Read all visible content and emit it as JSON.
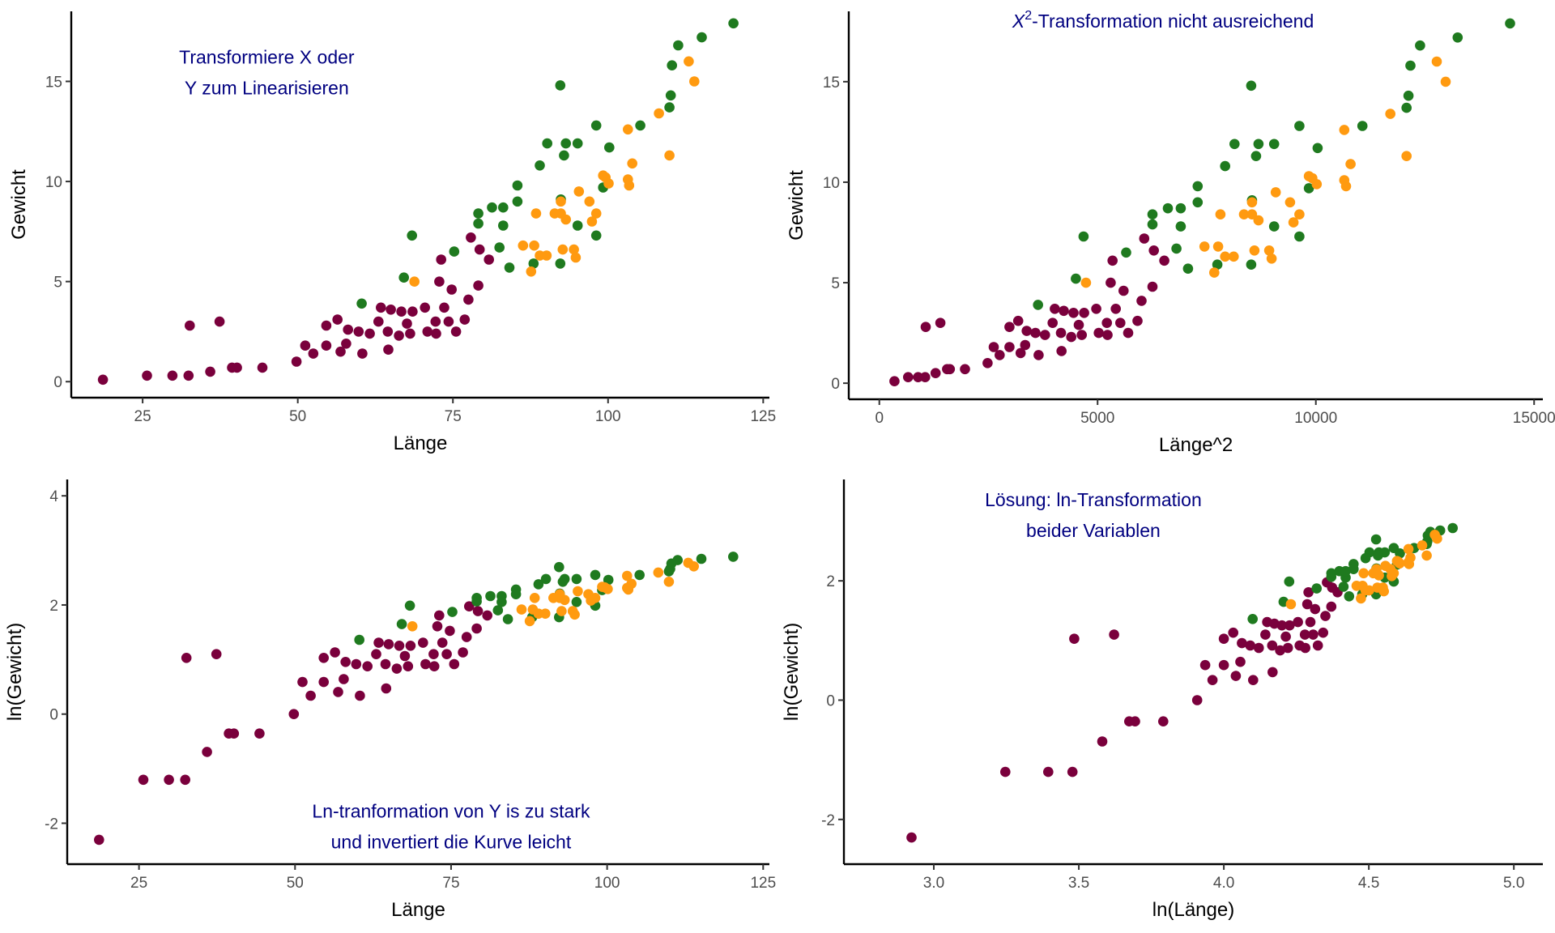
{
  "colors": {
    "group_a": "#7a003c",
    "group_b": "#1f7a1f",
    "group_c": "#ff9a10",
    "annotation": "#000080",
    "tick_label": "#4d4d4d",
    "axis": "#000000"
  },
  "chart_data": [
    {
      "id": "p1",
      "type": "scatter",
      "title": "",
      "xlabel": "Länge",
      "ylabel": "Gewicht",
      "xlim": [
        13.5,
        126
      ],
      "ylim": [
        -0.8,
        18.5
      ],
      "xticks": [
        25,
        50,
        75,
        100,
        125
      ],
      "xtick_labels": [
        "25",
        "50",
        "75",
        "100",
        "125"
      ],
      "yticks": [
        0,
        5,
        10,
        15
      ],
      "ytick_labels": [
        "0",
        "5",
        "10",
        "15"
      ],
      "x_transform": "identity",
      "y_transform": "identity",
      "grid": false,
      "legend": "none",
      "annotation": {
        "lines": [
          "Transformiere X oder",
          "Y zum Linearisieren"
        ],
        "anchor_x": 45,
        "anchor_y": 15.9
      }
    },
    {
      "id": "p2",
      "type": "scatter",
      "xlabel": "Länge^2",
      "ylabel": "Gewicht",
      "xlim": [
        -700,
        15200
      ],
      "ylim": [
        -0.8,
        18.5
      ],
      "xticks": [
        0,
        5000,
        10000,
        15000
      ],
      "xtick_labels": [
        "0",
        "5000",
        "10000",
        "15000"
      ],
      "yticks": [
        0,
        5,
        10,
        15
      ],
      "ytick_labels": [
        "0",
        "5",
        "10",
        "15"
      ],
      "x_transform": "square",
      "y_transform": "identity",
      "grid": false,
      "legend": "none",
      "annotation": {
        "prefix_italic": "X",
        "superscript": "2",
        "lines": [
          "-Transformation nicht ausreichend"
        ],
        "anchor_x": 6500,
        "anchor_y": 17.7
      }
    },
    {
      "id": "p3",
      "type": "scatter",
      "xlabel": "Länge",
      "ylabel": "ln(Gewicht)",
      "xlim": [
        13.5,
        126
      ],
      "ylim": [
        -2.75,
        4.3
      ],
      "xticks": [
        25,
        50,
        75,
        100,
        125
      ],
      "xtick_labels": [
        "25",
        "50",
        "75",
        "100",
        "125"
      ],
      "yticks": [
        -2,
        0,
        2,
        4
      ],
      "ytick_labels": [
        "-2",
        "0",
        "2",
        "4"
      ],
      "x_transform": "identity",
      "y_transform": "log",
      "grid": false,
      "legend": "none",
      "annotation": {
        "lines": [
          "Ln-tranformation von Y is zu stark",
          "und invertiert die Kurve leicht"
        ],
        "anchor_x": 75,
        "anchor_y": -1.9
      }
    },
    {
      "id": "p4",
      "type": "scatter",
      "xlabel": "ln(Länge)",
      "ylabel": "ln(Gewicht)",
      "xlim": [
        2.69,
        5.1
      ],
      "ylim": [
        -2.75,
        3.7
      ],
      "xticks": [
        3.0,
        3.5,
        4.0,
        4.5,
        5.0
      ],
      "xtick_labels": [
        "3.0",
        "3.5",
        "4.0",
        "4.5",
        "5.0"
      ],
      "yticks": [
        -2,
        0,
        2
      ],
      "ytick_labels": [
        "-2",
        "0",
        "2"
      ],
      "x_transform": "log",
      "y_transform": "log",
      "grid": false,
      "legend": "none",
      "annotation": {
        "lines": [
          "Lösung: ln-Transformation",
          "beider Variablen"
        ],
        "anchor_x": 3.55,
        "anchor_y": 3.25
      }
    }
  ],
  "points": {
    "fields": [
      "laenge",
      "gewicht",
      "group"
    ],
    "rows": [
      [
        18.6,
        0.1,
        "a"
      ],
      [
        25.7,
        0.3,
        "a"
      ],
      [
        29.8,
        0.3,
        "a"
      ],
      [
        32.4,
        0.3,
        "a"
      ],
      [
        35.9,
        0.5,
        "a"
      ],
      [
        39.4,
        0.7,
        "a"
      ],
      [
        40.2,
        0.7,
        "a"
      ],
      [
        44.3,
        0.7,
        "a"
      ],
      [
        49.8,
        1.0,
        "a"
      ],
      [
        32.6,
        2.8,
        "a"
      ],
      [
        37.4,
        3.0,
        "a"
      ],
      [
        51.2,
        1.8,
        "a"
      ],
      [
        52.5,
        1.4,
        "a"
      ],
      [
        54.6,
        2.8,
        "a"
      ],
      [
        54.6,
        1.8,
        "a"
      ],
      [
        56.4,
        3.1,
        "a"
      ],
      [
        56.9,
        1.5,
        "a"
      ],
      [
        57.8,
        1.9,
        "a"
      ],
      [
        58.1,
        2.6,
        "a"
      ],
      [
        59.8,
        2.5,
        "a"
      ],
      [
        60.4,
        1.4,
        "a"
      ],
      [
        61.6,
        2.4,
        "a"
      ],
      [
        63.0,
        3.0,
        "a"
      ],
      [
        63.4,
        3.7,
        "a"
      ],
      [
        64.5,
        2.5,
        "a"
      ],
      [
        64.6,
        1.6,
        "a"
      ],
      [
        65.0,
        3.6,
        "a"
      ],
      [
        66.3,
        2.3,
        "a"
      ],
      [
        66.7,
        3.5,
        "a"
      ],
      [
        67.6,
        2.9,
        "a"
      ],
      [
        68.1,
        2.4,
        "a"
      ],
      [
        68.5,
        3.5,
        "a"
      ],
      [
        70.5,
        3.7,
        "a"
      ],
      [
        70.9,
        2.5,
        "a"
      ],
      [
        72.2,
        3.0,
        "a"
      ],
      [
        72.3,
        2.4,
        "a"
      ],
      [
        72.8,
        5.0,
        "a"
      ],
      [
        73.1,
        6.1,
        "a"
      ],
      [
        73.6,
        3.7,
        "a"
      ],
      [
        74.3,
        3.0,
        "a"
      ],
      [
        74.8,
        4.6,
        "a"
      ],
      [
        75.5,
        2.5,
        "a"
      ],
      [
        76.9,
        3.1,
        "a"
      ],
      [
        77.5,
        4.1,
        "a"
      ],
      [
        77.9,
        7.2,
        "a"
      ],
      [
        79.1,
        4.8,
        "a"
      ],
      [
        79.3,
        6.6,
        "a"
      ],
      [
        80.8,
        6.1,
        "a"
      ],
      [
        60.3,
        3.9,
        "b"
      ],
      [
        67.1,
        5.2,
        "b"
      ],
      [
        68.4,
        7.3,
        "b"
      ],
      [
        75.2,
        6.5,
        "b"
      ],
      [
        82.5,
        6.7,
        "b"
      ],
      [
        84.1,
        5.7,
        "b"
      ],
      [
        79.1,
        7.9,
        "b"
      ],
      [
        83.1,
        7.8,
        "b"
      ],
      [
        98.1,
        12.8,
        "b"
      ],
      [
        105.2,
        12.8,
        "b"
      ],
      [
        90.2,
        11.9,
        "b"
      ],
      [
        93.2,
        11.9,
        "b"
      ],
      [
        95.1,
        11.9,
        "b"
      ],
      [
        100.2,
        11.7,
        "b"
      ],
      [
        92.9,
        11.3,
        "b"
      ],
      [
        89.0,
        10.8,
        "b"
      ],
      [
        85.4,
        9.8,
        "b"
      ],
      [
        85.4,
        9.0,
        "b"
      ],
      [
        79.1,
        8.4,
        "b"
      ],
      [
        81.3,
        8.7,
        "b"
      ],
      [
        83.1,
        8.7,
        "b"
      ],
      [
        92.4,
        9.1,
        "b"
      ],
      [
        99.2,
        9.7,
        "b"
      ],
      [
        95.1,
        7.8,
        "b"
      ],
      [
        98.1,
        7.3,
        "b"
      ],
      [
        88.0,
        5.9,
        "b"
      ],
      [
        92.3,
        5.9,
        "b"
      ],
      [
        109.9,
        13.7,
        "b"
      ],
      [
        120.2,
        17.9,
        "b"
      ],
      [
        115.1,
        17.2,
        "b"
      ],
      [
        111.3,
        16.8,
        "b"
      ],
      [
        110.3,
        15.8,
        "b"
      ],
      [
        110.1,
        14.3,
        "b"
      ],
      [
        92.3,
        14.8,
        "b"
      ],
      [
        68.8,
        5.0,
        "c"
      ],
      [
        108.2,
        13.4,
        "c"
      ],
      [
        103.2,
        12.6,
        "c"
      ],
      [
        109.9,
        11.3,
        "c"
      ],
      [
        103.9,
        10.9,
        "c"
      ],
      [
        99.2,
        10.3,
        "c"
      ],
      [
        100.1,
        9.9,
        "c"
      ],
      [
        103.2,
        10.1,
        "c"
      ],
      [
        103.4,
        9.8,
        "c"
      ],
      [
        99.6,
        10.2,
        "c"
      ],
      [
        95.3,
        9.5,
        "c"
      ],
      [
        97.0,
        9.0,
        "c"
      ],
      [
        98.1,
        8.4,
        "c"
      ],
      [
        97.4,
        8.0,
        "c"
      ],
      [
        92.4,
        9.0,
        "c"
      ],
      [
        88.4,
        8.4,
        "c"
      ],
      [
        91.4,
        8.4,
        "c"
      ],
      [
        92.4,
        8.4,
        "c"
      ],
      [
        93.2,
        8.1,
        "c"
      ],
      [
        86.3,
        6.8,
        "c"
      ],
      [
        88.1,
        6.8,
        "c"
      ],
      [
        89.0,
        6.3,
        "c"
      ],
      [
        90.1,
        6.3,
        "c"
      ],
      [
        92.7,
        6.6,
        "c"
      ],
      [
        94.5,
        6.6,
        "c"
      ],
      [
        94.8,
        6.2,
        "c"
      ],
      [
        87.6,
        5.5,
        "c"
      ],
      [
        113.0,
        16.0,
        "c"
      ],
      [
        113.9,
        15.0,
        "c"
      ]
    ]
  }
}
